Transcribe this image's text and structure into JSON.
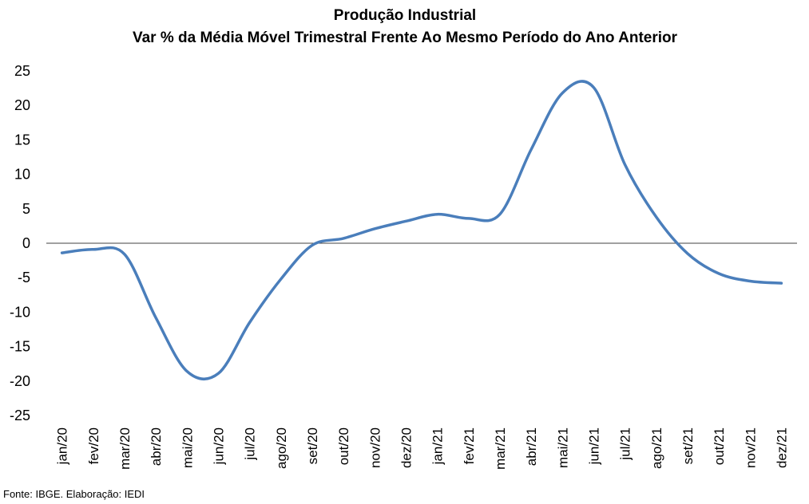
{
  "chart_data": {
    "type": "line",
    "title": "Produção Industrial",
    "subtitle": "Var % da Média Móvel Trimestral Frente Ao Mesmo Período do Ano Anterior",
    "categories": [
      "jan/20",
      "fev/20",
      "mar/20",
      "abr/20",
      "mai/20",
      "jun/20",
      "jul/20",
      "ago/20",
      "set/20",
      "out/20",
      "nov/20",
      "dez/20",
      "jan/21",
      "fev/21",
      "mar/21",
      "abr/21",
      "mai/21",
      "jun/21",
      "jul/21",
      "ago/21",
      "set/21",
      "out/21",
      "nov/21",
      "dez/21"
    ],
    "series": [
      {
        "values": [
          -1.4,
          -0.9,
          -1.6,
          -10.8,
          -18.6,
          -18.9,
          -11.5,
          -5.2,
          -0.3,
          0.7,
          2.1,
          3.2,
          4.2,
          3.6,
          4.2,
          13.6,
          21.8,
          22.6,
          11.4,
          3.8,
          -1.5,
          -4.4,
          -5.5,
          -5.8
        ],
        "color": "#4A7EBB"
      }
    ],
    "yticks": [
      25,
      20,
      15,
      10,
      5,
      0,
      -5,
      -10,
      -15,
      -20,
      -25
    ],
    "ylim": [
      -25,
      25
    ],
    "grid": false,
    "smoothed": true
  },
  "source": "Fonte: IBGE. Elaboração: IEDI"
}
